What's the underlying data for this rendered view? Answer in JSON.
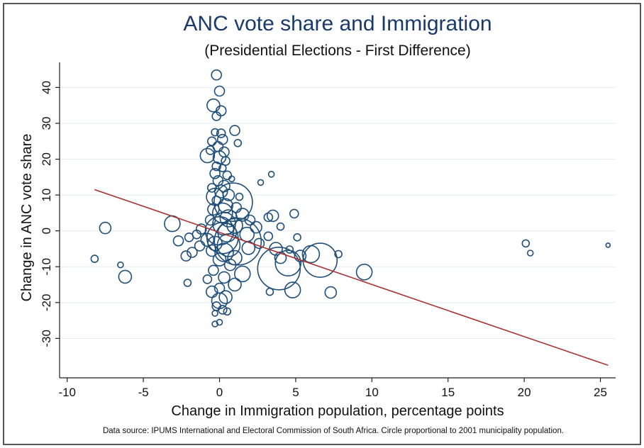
{
  "chart_data": {
    "type": "scatter",
    "title": "ANC vote share and Immigration",
    "subtitle": "(Presidential Elections - First Difference)",
    "xlabel": "Change in Immigration population, percentage points",
    "ylabel": "Change in ANC vote share",
    "note": "Data source: IPUMS International and Electoral Commission of South Africa. Circle proportional to 2001 municipality population.",
    "xlim": [
      -10.5,
      26
    ],
    "ylim": [
      -41,
      47
    ],
    "x_ticks": [
      -10,
      -5,
      0,
      5,
      10,
      15,
      20,
      25
    ],
    "y_ticks": [
      -30,
      -20,
      -10,
      0,
      10,
      20,
      30,
      40
    ],
    "grid": "horizontal",
    "marker_color": "#1f4e79",
    "fit_line": {
      "x": [
        -8.2,
        25.5
      ],
      "y": [
        11.5,
        -37.5
      ],
      "color": "#a83232"
    },
    "points": [
      {
        "x": -0.2,
        "y": 43.5,
        "s": 7
      },
      {
        "x": 0.0,
        "y": 39.0,
        "s": 7
      },
      {
        "x": -0.4,
        "y": 35.0,
        "s": 9
      },
      {
        "x": 0.1,
        "y": 33.5,
        "s": 7
      },
      {
        "x": -0.2,
        "y": 32.0,
        "s": 6
      },
      {
        "x": 1.0,
        "y": 28.0,
        "s": 7
      },
      {
        "x": 0.1,
        "y": 27.2,
        "s": 6
      },
      {
        "x": -0.3,
        "y": 27.5,
        "s": 5
      },
      {
        "x": -0.5,
        "y": 25.0,
        "s": 6
      },
      {
        "x": 0.2,
        "y": 25.5,
        "s": 7
      },
      {
        "x": 1.2,
        "y": 24.5,
        "s": 5
      },
      {
        "x": -0.1,
        "y": 23.5,
        "s": 7
      },
      {
        "x": -0.6,
        "y": 22.5,
        "s": 6
      },
      {
        "x": 0.3,
        "y": 22.0,
        "s": 7
      },
      {
        "x": -0.8,
        "y": 21.0,
        "s": 10
      },
      {
        "x": 0.0,
        "y": 20.5,
        "s": 9
      },
      {
        "x": 0.4,
        "y": 19.5,
        "s": 6
      },
      {
        "x": -0.2,
        "y": 18.0,
        "s": 6
      },
      {
        "x": 0.2,
        "y": 17.5,
        "s": 5
      },
      {
        "x": -0.3,
        "y": 16.0,
        "s": 7
      },
      {
        "x": 0.5,
        "y": 15.5,
        "s": 6
      },
      {
        "x": 3.4,
        "y": 15.8,
        "s": 4
      },
      {
        "x": 0.8,
        "y": 14.5,
        "s": 4
      },
      {
        "x": 2.7,
        "y": 13.5,
        "s": 4
      },
      {
        "x": -0.1,
        "y": 14.0,
        "s": 7
      },
      {
        "x": 0.3,
        "y": 12.5,
        "s": 8
      },
      {
        "x": -0.5,
        "y": 12.0,
        "s": 6
      },
      {
        "x": 0.1,
        "y": 11.0,
        "s": 9
      },
      {
        "x": -0.3,
        "y": 9.5,
        "s": 12
      },
      {
        "x": 0.6,
        "y": 10.0,
        "s": 8
      },
      {
        "x": 1.3,
        "y": 9.5,
        "s": 5
      },
      {
        "x": 0.9,
        "y": 8.0,
        "s": 27
      },
      {
        "x": -0.2,
        "y": 8.5,
        "s": 6
      },
      {
        "x": 0.4,
        "y": 7.0,
        "s": 10
      },
      {
        "x": 1.1,
        "y": 6.5,
        "s": 7
      },
      {
        "x": -0.4,
        "y": 6.0,
        "s": 8
      },
      {
        "x": 0.2,
        "y": 5.0,
        "s": 14
      },
      {
        "x": 1.5,
        "y": 4.5,
        "s": 9
      },
      {
        "x": 4.9,
        "y": 4.8,
        "s": 6
      },
      {
        "x": 3.5,
        "y": 4.2,
        "s": 8
      },
      {
        "x": 3.2,
        "y": 3.8,
        "s": 6
      },
      {
        "x": 0.6,
        "y": 3.5,
        "s": 12
      },
      {
        "x": -0.6,
        "y": 3.0,
        "s": 7
      },
      {
        "x": 2.0,
        "y": 3.0,
        "s": 7
      },
      {
        "x": 0.3,
        "y": 2.0,
        "s": 16
      },
      {
        "x": -3.1,
        "y": 2.0,
        "s": 11
      },
      {
        "x": 1.0,
        "y": 1.5,
        "s": 11
      },
      {
        "x": 2.4,
        "y": 1.0,
        "s": 8
      },
      {
        "x": 4.0,
        "y": 1.2,
        "s": 5
      },
      {
        "x": -7.5,
        "y": 0.8,
        "s": 8
      },
      {
        "x": -1.2,
        "y": 0.5,
        "s": 7
      },
      {
        "x": 0.0,
        "y": 0.0,
        "s": 20
      },
      {
        "x": 0.5,
        "y": -0.5,
        "s": 13
      },
      {
        "x": -1.5,
        "y": -1.0,
        "s": 6
      },
      {
        "x": 1.8,
        "y": -1.0,
        "s": 10
      },
      {
        "x": 3.2,
        "y": -1.5,
        "s": 6
      },
      {
        "x": -2.0,
        "y": -1.8,
        "s": 6
      },
      {
        "x": 5.1,
        "y": -1.8,
        "s": 5
      },
      {
        "x": 0.2,
        "y": -2.0,
        "s": 22
      },
      {
        "x": -2.7,
        "y": -2.8,
        "s": 7
      },
      {
        "x": -0.8,
        "y": -2.5,
        "s": 9
      },
      {
        "x": 1.2,
        "y": -3.0,
        "s": 33
      },
      {
        "x": 2.6,
        "y": -3.5,
        "s": 7
      },
      {
        "x": -0.3,
        "y": -3.5,
        "s": 10
      },
      {
        "x": 0.6,
        "y": -4.0,
        "s": 16
      },
      {
        "x": -1.3,
        "y": -4.2,
        "s": 7
      },
      {
        "x": 1.9,
        "y": -4.8,
        "s": 9
      },
      {
        "x": 3.7,
        "y": -5.0,
        "s": 9
      },
      {
        "x": 4.6,
        "y": -5.2,
        "s": 5
      },
      {
        "x": -0.5,
        "y": -5.5,
        "s": 8
      },
      {
        "x": 0.3,
        "y": -6.0,
        "s": 13
      },
      {
        "x": -1.8,
        "y": -6.0,
        "s": 7
      },
      {
        "x": 6.0,
        "y": -6.5,
        "s": 12
      },
      {
        "x": 7.8,
        "y": -6.5,
        "s": 5
      },
      {
        "x": -2.2,
        "y": -7.0,
        "s": 7
      },
      {
        "x": 5.3,
        "y": -7.0,
        "s": 8
      },
      {
        "x": 4.0,
        "y": -7.5,
        "s": 8
      },
      {
        "x": 1.0,
        "y": -7.5,
        "s": 10
      },
      {
        "x": -8.2,
        "y": -7.8,
        "s": 5
      },
      {
        "x": 0.0,
        "y": -8.0,
        "s": 9
      },
      {
        "x": 6.6,
        "y": -8.2,
        "s": 24
      },
      {
        "x": 4.5,
        "y": -9.0,
        "s": 18
      },
      {
        "x": -6.5,
        "y": -9.5,
        "s": 4
      },
      {
        "x": 0.7,
        "y": -9.5,
        "s": 8
      },
      {
        "x": 3.9,
        "y": -10.5,
        "s": 30
      },
      {
        "x": -0.4,
        "y": -11.0,
        "s": 7
      },
      {
        "x": 9.5,
        "y": -11.5,
        "s": 11
      },
      {
        "x": 1.5,
        "y": -12.0,
        "s": 11
      },
      {
        "x": -6.2,
        "y": -12.8,
        "s": 9
      },
      {
        "x": 0.3,
        "y": -13.0,
        "s": 8
      },
      {
        "x": -0.8,
        "y": -13.5,
        "s": 6
      },
      {
        "x": -2.1,
        "y": -14.5,
        "s": 5
      },
      {
        "x": 1.0,
        "y": -15.0,
        "s": 9
      },
      {
        "x": 0.0,
        "y": -16.0,
        "s": 7
      },
      {
        "x": 4.8,
        "y": -16.5,
        "s": 11
      },
      {
        "x": 3.3,
        "y": -17.0,
        "s": 5
      },
      {
        "x": 7.3,
        "y": -17.2,
        "s": 8
      },
      {
        "x": -0.5,
        "y": -17.0,
        "s": 8
      },
      {
        "x": 0.4,
        "y": -18.5,
        "s": 9
      },
      {
        "x": 0.0,
        "y": -19.5,
        "s": 11
      },
      {
        "x": -0.2,
        "y": -21.0,
        "s": 6
      },
      {
        "x": 0.2,
        "y": -22.0,
        "s": 6
      },
      {
        "x": 0.5,
        "y": -22.5,
        "s": 5
      },
      {
        "x": -0.3,
        "y": -23.0,
        "s": 4
      },
      {
        "x": 0.0,
        "y": -25.5,
        "s": 4
      },
      {
        "x": -0.3,
        "y": -26.0,
        "s": 4
      },
      {
        "x": 20.1,
        "y": -3.5,
        "s": 5
      },
      {
        "x": 20.4,
        "y": -6.2,
        "s": 4
      },
      {
        "x": 25.5,
        "y": -4.0,
        "s": 3
      }
    ]
  }
}
